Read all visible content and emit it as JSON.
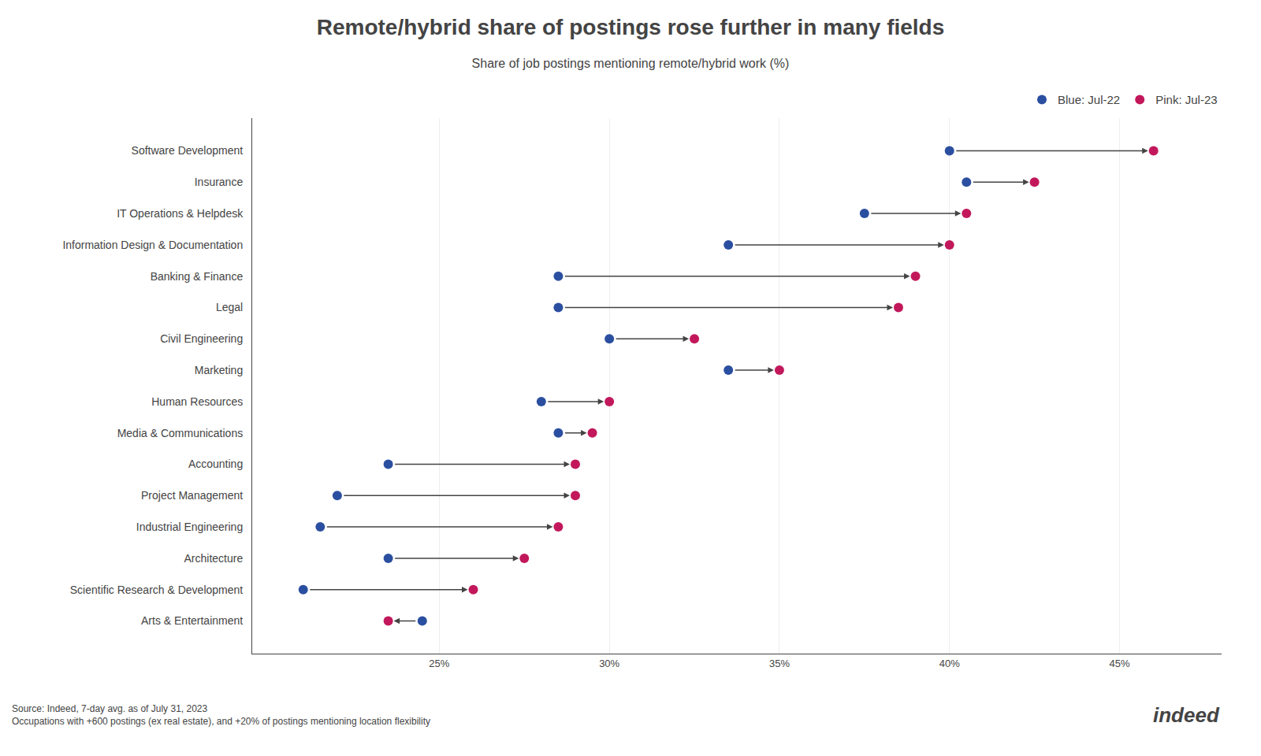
{
  "chart_data": {
    "type": "dumbbell",
    "title": "Remote/hybrid share of postings rose further in many fields",
    "subtitle": "Share of job postings mentioning remote/hybrid work (%)",
    "annotations": [
      "Source: Indeed, 7-day avg. as of July 31, 2023\nOccupations with +600 postings (ex real estate), and +20% of postings mentioning location flexibility",
      "indeed"
    ],
    "orientation": "horizontal",
    "categories": [
      "Software Development",
      "Insurance",
      "IT Operations & Helpdesk",
      "Information Design & Documentation",
      "Banking & Finance",
      "Legal",
      "Civil Engineering",
      "Marketing",
      "Human Resources",
      "Media & Communications",
      "Accounting",
      "Project Management",
      "Industrial Engineering",
      "Architecture",
      "Scientific Research & Development",
      "Arts & Entertainment"
    ],
    "series": [
      {
        "name": "Blue: Jul-22",
        "color": "#2B4FA0",
        "values": [
          40.0,
          40.5,
          37.5,
          33.5,
          28.5,
          28.5,
          30.0,
          33.5,
          28.0,
          28.5,
          23.5,
          22.0,
          21.5,
          23.5,
          21.0,
          24.5
        ]
      },
      {
        "name": "Pink: Jul-23",
        "color": "#C2185B",
        "values": [
          46.0,
          42.5,
          40.5,
          40.0,
          39.0,
          38.5,
          32.5,
          35.0,
          30.0,
          29.5,
          29.0,
          29.0,
          28.5,
          27.5,
          26.0,
          23.5
        ]
      }
    ],
    "xlim": [
      19.5,
      48
    ],
    "xticks": [
      {
        "value": 25,
        "label": "25%"
      },
      {
        "value": 30,
        "label": "30%"
      },
      {
        "value": 35,
        "label": "35%"
      },
      {
        "value": 40,
        "label": "40%"
      },
      {
        "value": 45,
        "label": "45%"
      }
    ],
    "grid": true,
    "legend": "upper right"
  }
}
